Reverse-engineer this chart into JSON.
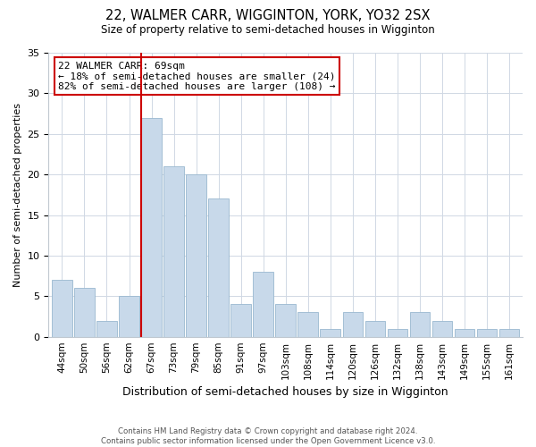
{
  "title": "22, WALMER CARR, WIGGINTON, YORK, YO32 2SX",
  "subtitle": "Size of property relative to semi-detached houses in Wigginton",
  "xlabel": "Distribution of semi-detached houses by size in Wigginton",
  "ylabel": "Number of semi-detached properties",
  "footer_line1": "Contains HM Land Registry data © Crown copyright and database right 2024.",
  "footer_line2": "Contains public sector information licensed under the Open Government Licence v3.0.",
  "bar_labels": [
    "44sqm",
    "50sqm",
    "56sqm",
    "62sqm",
    "67sqm",
    "73sqm",
    "79sqm",
    "85sqm",
    "91sqm",
    "97sqm",
    "103sqm",
    "108sqm",
    "114sqm",
    "120sqm",
    "126sqm",
    "132sqm",
    "138sqm",
    "143sqm",
    "149sqm",
    "155sqm",
    "161sqm"
  ],
  "bar_values": [
    7,
    6,
    2,
    5,
    27,
    21,
    20,
    17,
    4,
    8,
    4,
    3,
    1,
    3,
    2,
    1,
    3,
    2,
    1,
    1,
    1
  ],
  "bar_color": "#c8d9ea",
  "bar_edge_color": "#9ab8d0",
  "highlight_index": 4,
  "highlight_line_color": "#cc0000",
  "annotation_text": "22 WALMER CARR: 69sqm\n← 18% of semi-detached houses are smaller (24)\n82% of semi-detached houses are larger (108) →",
  "annotation_box_edge": "#cc0000",
  "ylim": [
    0,
    35
  ],
  "yticks": [
    0,
    5,
    10,
    15,
    20,
    25,
    30,
    35
  ],
  "background_color": "#ffffff",
  "grid_color": "#d0d8e4"
}
